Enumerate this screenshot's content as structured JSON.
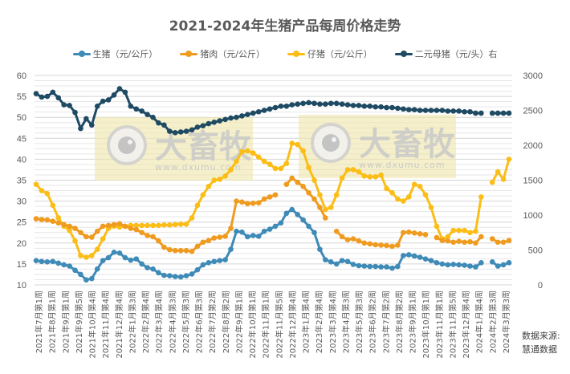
{
  "chart_data": {
    "type": "line",
    "title": "2021-2024年生猪产品每周价格走势",
    "xlabel": "",
    "ylabel_left": "",
    "ylabel_right": "",
    "ylim_left": [
      10,
      60
    ],
    "ylim_right": [
      0,
      3000
    ],
    "yticks_left": [
      10,
      15,
      20,
      25,
      30,
      35,
      40,
      45,
      50,
      55,
      60
    ],
    "yticks_right": [
      0,
      500,
      1000,
      1500,
      2000,
      2500,
      3000
    ],
    "grid": true,
    "legend_position": "top",
    "x_tick_labels": [
      "2021年7月第1周",
      "2021年8月第1周",
      "2021年9月第1周",
      "2021年9月第5周",
      "2021年10月第4周",
      "2021年11月第4周",
      "2021年12月第4周",
      "2022年1月第3周",
      "2022年2月第4周",
      "2022年3月第4周",
      "2022年4月第3周",
      "2022年5月第3周",
      "2022年6月第3周",
      "2022年7月第2周",
      "2022年8月第2周",
      "2022年9月第1周",
      "2022年10月第1周",
      "2022年11月第1周",
      "2022年11月第5周",
      "2022年12月第4周",
      "2023年1月第4周",
      "2023年2月第4周",
      "2023年3月第4周",
      "2023年4月第3周",
      "2023年5月第3周",
      "2023年6月第2周",
      "2023年7月第2周",
      "2023年8月第2周",
      "2023年9月第1周",
      "2023年10月第1周",
      "2023年11月第1周",
      "2023年11月第5周",
      "2023年12月第4周",
      "2024年1月第4周",
      "2024年2月第3周",
      "2024年3月第3周"
    ],
    "series": [
      {
        "name": "生猪（元/公斤）",
        "axis": "left",
        "color": "#3f8bb8",
        "values": [
          15.8,
          15.6,
          15.5,
          15.6,
          15.2,
          14.8,
          14.5,
          13.5,
          12.5,
          11.2,
          11.5,
          13.8,
          15.8,
          16.5,
          17.8,
          17.6,
          16.5,
          15.9,
          16.2,
          15.0,
          14.1,
          13.8,
          12.9,
          12.3,
          12.2,
          12.0,
          11.9,
          12.2,
          12.6,
          13.6,
          14.8,
          15.3,
          15.6,
          15.8,
          16.0,
          18.5,
          22.8,
          22.6,
          21.5,
          21.8,
          21.6,
          22.8,
          23.3,
          24.0,
          24.8,
          27.1,
          28.0,
          26.8,
          25.5,
          24.0,
          22.5,
          18.5,
          16.0,
          15.5,
          15.0,
          15.8,
          15.6,
          14.9,
          14.6,
          14.5,
          14.4,
          14.4,
          14.3,
          14.3,
          14.0,
          14.4,
          17.0,
          17.2,
          16.9,
          16.6,
          16.2,
          15.8,
          15.3,
          15.0,
          14.8,
          14.9,
          14.8,
          14.7,
          14.5,
          14.3,
          15.3,
          null,
          15.5,
          14.5,
          14.8,
          15.3
        ]
      },
      {
        "name": "猪肉（元/公斤）",
        "axis": "left",
        "color": "#ef9b1f",
        "values": [
          25.8,
          25.6,
          25.5,
          25.2,
          24.8,
          24.4,
          24.0,
          23.5,
          22.5,
          21.5,
          21.4,
          22.8,
          24.0,
          24.2,
          24.4,
          24.6,
          24.0,
          23.5,
          23.2,
          22.5,
          21.8,
          21.5,
          20.5,
          19.0,
          18.4,
          18.2,
          18.2,
          18.2,
          18.0,
          19.2,
          20.2,
          20.6,
          21.2,
          21.4,
          21.6,
          23.5,
          30.0,
          29.8,
          29.4,
          29.5,
          29.6,
          30.5,
          31.0,
          31.5,
          null,
          34.0,
          35.5,
          34.5,
          33.5,
          32.0,
          30.5,
          28.5,
          26.0,
          null,
          22.8,
          21.5,
          20.8,
          21.0,
          20.5,
          20.0,
          19.8,
          19.6,
          19.5,
          19.4,
          19.2,
          19.5,
          22.5,
          22.6,
          22.4,
          22.2,
          22.0,
          null,
          21.3,
          20.6,
          20.5,
          20.2,
          20.4,
          20.2,
          20.3,
          20.0,
          21.5,
          null,
          21.0,
          20.2,
          20.2,
          20.6
        ]
      },
      {
        "name": "仔猪（元/公斤）",
        "axis": "left",
        "color": "#fbbd16",
        "values": [
          34.0,
          32.5,
          31.8,
          29.0,
          26.0,
          24.0,
          23.0,
          20.5,
          17.0,
          16.6,
          17.0,
          18.5,
          21.0,
          23.5,
          24.0,
          23.8,
          24.0,
          24.2,
          24.2,
          24.2,
          24.2,
          24.2,
          24.2,
          24.3,
          24.3,
          24.4,
          24.5,
          24.5,
          26.0,
          29.0,
          31.5,
          33.5,
          35.0,
          35.2,
          36.0,
          37.5,
          39.5,
          41.8,
          42.0,
          41.5,
          40.5,
          39.5,
          38.8,
          37.8,
          37.8,
          39.0,
          43.8,
          43.5,
          42.0,
          38.0,
          35.0,
          31.5,
          28.0,
          28.5,
          31.5,
          35.5,
          37.5,
          37.5,
          37.0,
          36.0,
          35.8,
          35.8,
          36.2,
          33.0,
          32.0,
          30.5,
          30.0,
          31.0,
          34.0,
          33.5,
          31.5,
          28.5,
          24.0,
          21.0,
          21.5,
          23.0,
          23.0,
          23.0,
          22.5,
          22.8,
          31.0,
          null,
          34.5,
          37.0,
          35.2,
          40.0
        ]
      },
      {
        "name": "二元母猪（元/头）右",
        "axis": "right",
        "color": "#1e4a63",
        "values": [
          2740,
          2690,
          2700,
          2760,
          2680,
          2580,
          2570,
          2470,
          2240,
          2380,
          2290,
          2560,
          2630,
          2650,
          2720,
          2810,
          2760,
          2560,
          2520,
          2490,
          2440,
          2400,
          2320,
          2290,
          2200,
          2180,
          2190,
          2200,
          2220,
          2260,
          2280,
          2310,
          2330,
          2350,
          2370,
          2390,
          2400,
          2420,
          2440,
          2460,
          2480,
          2500,
          2520,
          2540,
          2560,
          2560,
          2580,
          2590,
          2600,
          2610,
          2600,
          2590,
          2590,
          2600,
          2600,
          2590,
          2580,
          2570,
          2570,
          2560,
          2560,
          2550,
          2550,
          2540,
          2540,
          2530,
          2520,
          2510,
          2510,
          2500,
          2500,
          2500,
          2500,
          2500,
          2490,
          2490,
          2490,
          2480,
          2480,
          2460,
          2460,
          null,
          2460,
          2460,
          2460,
          2460
        ]
      }
    ],
    "watermark": {
      "text": "大畜牧",
      "url": "www.dxumu.com",
      "count": 2
    }
  },
  "title": "2021-2024年生猪产品每周价格走势",
  "legend": [
    {
      "label": "生猪（元/公斤）",
      "color": "#3f8bb8"
    },
    {
      "label": "猪肉（元/公斤）",
      "color": "#ef9b1f"
    },
    {
      "label": "仔猪（元/公斤）",
      "color": "#fbbd16"
    },
    {
      "label": "二元母猪（元/头）右",
      "color": "#1e4a63"
    }
  ],
  "source": {
    "line1": "数据来源:",
    "line2": "慧通数据"
  }
}
